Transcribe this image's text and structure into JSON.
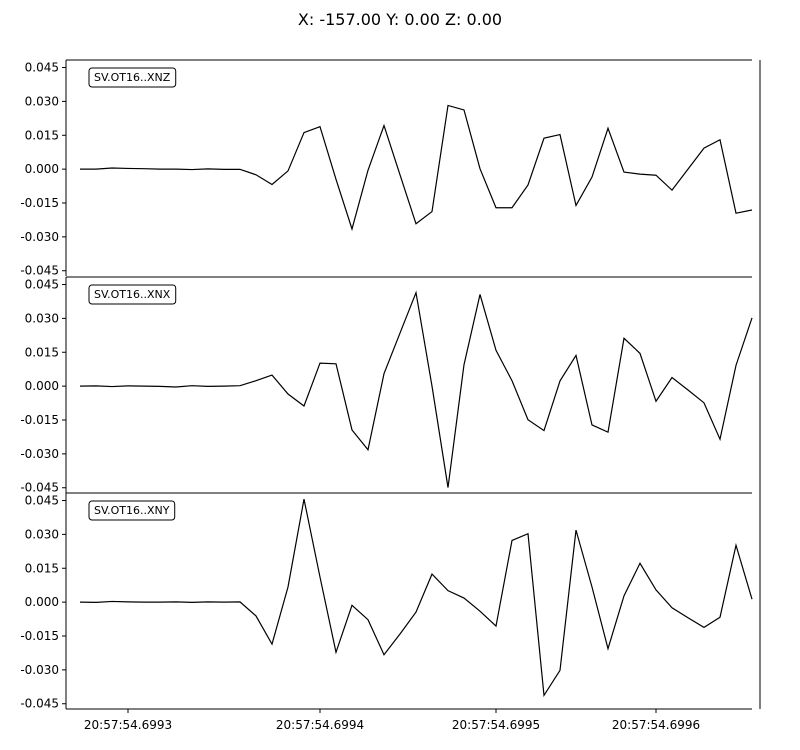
{
  "title": "X: -157.00 Y: 0.00 Z: 0.00",
  "chart_data": {
    "type": "line",
    "title": "X: -157.00 Y: 0.00 Z: 0.00",
    "x_ticks": [
      "20:57:54.6993",
      "20:57:54.6994",
      "20:57:54.6995",
      "20:57:54.6996"
    ],
    "y_ticks": [
      "0.045",
      "0.030",
      "0.015",
      "0.000",
      "-0.015",
      "-0.030",
      "-0.045"
    ],
    "ylim": [
      -0.046,
      0.047
    ],
    "x_sample_count": 43,
    "line_color": "#000000",
    "panels": [
      {
        "label": "SV.OT16..XNZ",
        "values": [
          0,
          0,
          0.0005,
          0.0003,
          0.0002,
          0,
          0,
          -0.0002,
          0.0001,
          -0.0001,
          -0.0001,
          -0.0025,
          -0.0068,
          -0.0008,
          0.0162,
          0.0188,
          -0.0045,
          -0.0265,
          -0.0005,
          0.0193,
          -0.0025,
          -0.0242,
          -0.0188,
          0.0282,
          0.0262,
          0.0002,
          -0.0171,
          -0.0171,
          -0.007,
          0.0137,
          0.0153,
          -0.0161,
          -0.0035,
          0.0181,
          -0.0013,
          -0.0022,
          -0.0027,
          -0.0093,
          0,
          0.0093,
          0.013,
          -0.0195,
          -0.0181
        ]
      },
      {
        "label": "SV.OT16..XNX",
        "values": [
          0,
          0.0001,
          -0.0002,
          0.0001,
          0,
          -0.0001,
          -0.0004,
          0.0002,
          -0.0001,
          0,
          0.0002,
          0.0024,
          0.0049,
          -0.0035,
          -0.0088,
          0.0102,
          0.0099,
          -0.0194,
          -0.0282,
          0.0055,
          0.0235,
          0.0414,
          0,
          -0.0449,
          0.0095,
          0.0406,
          0.0159,
          0.0024,
          -0.0149,
          -0.0197,
          0.0023,
          0.0136,
          -0.0172,
          -0.0204,
          0.0212,
          0.0145,
          -0.0067,
          0.0038,
          -0.0017,
          -0.0074,
          -0.0235,
          0.0092,
          0.0302
        ]
      },
      {
        "label": "SV.OT16..XNY",
        "values": [
          0,
          -0.0001,
          0.0003,
          0.0001,
          0,
          0,
          0.0001,
          -0.0001,
          0.0001,
          0,
          0.0001,
          -0.0061,
          -0.0186,
          0.0067,
          0.0456,
          0.0111,
          -0.0222,
          -0.0014,
          -0.0078,
          -0.0233,
          -0.0141,
          -0.0044,
          0.0124,
          0.0051,
          0.0018,
          -0.004,
          -0.0106,
          0.0273,
          0.0303,
          -0.0413,
          -0.0302,
          0.0319,
          0.0067,
          -0.0206,
          0.0028,
          0.0172,
          0.0054,
          -0.0025,
          -0.0069,
          -0.0112,
          -0.0067,
          0.0252,
          0.0013
        ]
      }
    ]
  }
}
